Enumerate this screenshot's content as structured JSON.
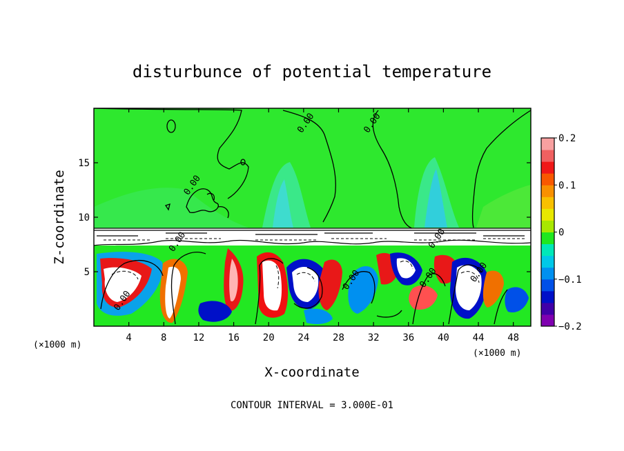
{
  "chart_data": {
    "type": "heatmap",
    "title": "disturbunce of potential temperature",
    "xlabel": "X-coordinate",
    "ylabel": "Z-coordinate",
    "x_unit": "(×1000 m)",
    "y_unit": "(×1000 m)",
    "xlim": [
      0,
      50
    ],
    "ylim": [
      0,
      20
    ],
    "x_ticks": [
      "4",
      "8",
      "12",
      "16",
      "20",
      "24",
      "28",
      "32",
      "36",
      "40",
      "44",
      "48"
    ],
    "x_tick_values": [
      4,
      8,
      12,
      16,
      20,
      24,
      28,
      32,
      36,
      40,
      44,
      48
    ],
    "y_ticks": [
      "5",
      "10",
      "15"
    ],
    "y_tick_values": [
      5,
      10,
      15
    ],
    "colorbar": {
      "min": -0.2,
      "max": 0.2,
      "tick_labels": [
        "0.2",
        "0.1",
        "0",
        "−0.1",
        "−0.2"
      ],
      "tick_values": [
        0.2,
        0.1,
        0,
        -0.1,
        -0.2
      ]
    },
    "contour_labels": [
      "0.00",
      "0.00",
      "0.00",
      "0.00",
      "0.00",
      "0.00",
      "0.00",
      "0.00",
      "0.00"
    ],
    "contour_label_positions": [
      [
        24.5,
        18.5
      ],
      [
        32.1,
        18.5
      ],
      [
        11.5,
        12.8
      ],
      [
        9.8,
        7.6
      ],
      [
        3.5,
        2.2
      ],
      [
        29.7,
        4.1
      ],
      [
        38.5,
        4.3
      ],
      [
        44.3,
        4.8
      ],
      [
        39.5,
        7.9
      ]
    ],
    "annotation": "CONTOUR INTERVAL = 3.000E-01",
    "colors": [
      "#7f00b0",
      "#4000a8",
      "#0010c8",
      "#0050e8",
      "#0090f0",
      "#00c8e8",
      "#00e8b8",
      "#20e820",
      "#a8e800",
      "#e8e800",
      "#f8c000",
      "#f89000",
      "#f85800",
      "#f01818",
      "#f06060",
      "#f8a0a0"
    ]
  }
}
